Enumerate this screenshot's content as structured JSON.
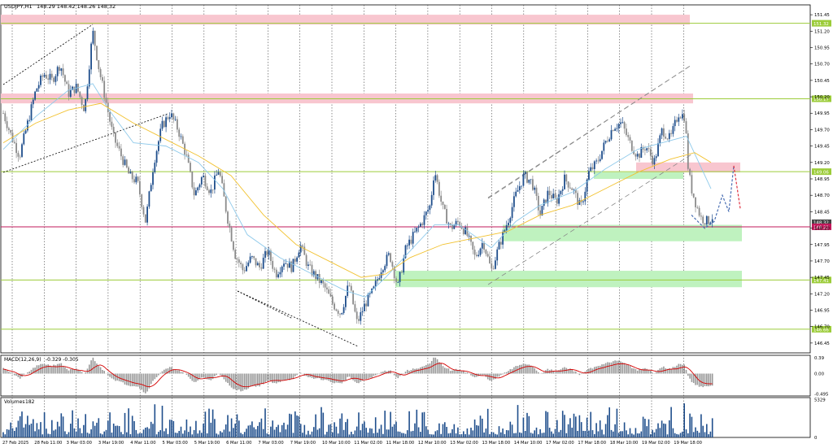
{
  "header": {
    "symbol_label": "USDJPY,H1",
    "ohlc_text": "148.29 148.42 148.26 148.32"
  },
  "colors": {
    "bull": "#1f4e8c",
    "bear": "#8a8a8a",
    "ema_fast": "#8ec9ea",
    "ema_slow": "#f2c230",
    "level_line": "#9ccc3a",
    "supply_zone": "#f8c6cf",
    "demand_zone": "#bff2bf",
    "trendline": "#000000",
    "channel": "#888888",
    "bid_line": "#c2185b",
    "macd_signal": "#d40000",
    "macd_hist": "#9a9a9a",
    "volume": "#1f4e8c",
    "forecast_blue": "#4a6fb3",
    "forecast_red": "#e03040"
  },
  "chart_data": [
    {
      "type": "candlestick",
      "panel": "price",
      "symbol": "USDJPY",
      "timeframe": "H1",
      "ylim": [
        146.3,
        151.6
      ],
      "y_ticks": [
        "151.45",
        "151.20",
        "150.95",
        "150.70",
        "150.45",
        "150.20",
        "149.95",
        "149.70",
        "149.45",
        "149.20",
        "148.95",
        "148.70",
        "148.45",
        "148.20",
        "147.95",
        "147.70",
        "147.45",
        "147.20",
        "146.95",
        "146.70",
        "146.45"
      ],
      "x_ticks": [
        "27 Feb 2025",
        "28 Feb 11:00",
        "3 Mar 03:00",
        "3 Mar 19:00",
        "4 Mar 11:00",
        "5 Mar 03:00",
        "5 Mar 19:00",
        "6 Mar 11:00",
        "7 Mar 03:00",
        "7 Mar 19:00",
        "10 Mar 10:00",
        "11 Mar 02:00",
        "11 Mar 18:00",
        "12 Mar 10:00",
        "13 Mar 02:00",
        "13 Mar 18:00",
        "14 Mar 10:00",
        "17 Mar 02:00",
        "17 Mar 18:00",
        "18 Mar 10:00",
        "19 Mar 02:00",
        "19 Mar 18:00"
      ],
      "close_path": [
        [
          0,
          149.95
        ],
        [
          10,
          149.6
        ],
        [
          20,
          149.3
        ],
        [
          30,
          149.8
        ],
        [
          40,
          150.3
        ],
        [
          50,
          150.55
        ],
        [
          60,
          150.45
        ],
        [
          70,
          150.7
        ],
        [
          80,
          150.25
        ],
        [
          90,
          150.35
        ],
        [
          100,
          150.0
        ],
        [
          110,
          151.2
        ],
        [
          118,
          150.6
        ],
        [
          125,
          150.2
        ],
        [
          135,
          149.6
        ],
        [
          145,
          149.3
        ],
        [
          155,
          149.0
        ],
        [
          165,
          148.9
        ],
        [
          175,
          148.3
        ],
        [
          185,
          149.2
        ],
        [
          195,
          149.75
        ],
        [
          205,
          149.95
        ],
        [
          215,
          149.7
        ],
        [
          225,
          149.3
        ],
        [
          235,
          148.7
        ],
        [
          245,
          149.0
        ],
        [
          255,
          148.75
        ],
        [
          265,
          149.1
        ],
        [
          275,
          148.4
        ],
        [
          285,
          147.8
        ],
        [
          295,
          147.55
        ],
        [
          305,
          147.75
        ],
        [
          315,
          147.6
        ],
        [
          325,
          147.85
        ],
        [
          335,
          147.5
        ],
        [
          345,
          147.7
        ],
        [
          355,
          147.6
        ],
        [
          365,
          147.95
        ],
        [
          375,
          147.6
        ],
        [
          385,
          147.45
        ],
        [
          395,
          147.3
        ],
        [
          405,
          147.05
        ],
        [
          415,
          146.9
        ],
        [
          425,
          147.35
        ],
        [
          435,
          146.75
        ],
        [
          445,
          147.05
        ],
        [
          455,
          147.25
        ],
        [
          465,
          147.6
        ],
        [
          475,
          147.8
        ],
        [
          485,
          147.3
        ],
        [
          495,
          147.9
        ],
        [
          505,
          148.1
        ],
        [
          515,
          148.3
        ],
        [
          525,
          148.55
        ],
        [
          530,
          149.1
        ],
        [
          540,
          148.5
        ],
        [
          550,
          148.2
        ],
        [
          560,
          148.3
        ],
        [
          570,
          148.1
        ],
        [
          580,
          147.75
        ],
        [
          590,
          148.0
        ],
        [
          600,
          147.55
        ],
        [
          610,
          147.95
        ],
        [
          620,
          148.3
        ],
        [
          630,
          148.7
        ],
        [
          640,
          149.0
        ],
        [
          650,
          148.9
        ],
        [
          660,
          148.4
        ],
        [
          670,
          148.75
        ],
        [
          680,
          148.6
        ],
        [
          690,
          148.95
        ],
        [
          700,
          148.8
        ],
        [
          710,
          148.5
        ],
        [
          720,
          149.05
        ],
        [
          730,
          149.2
        ],
        [
          740,
          149.5
        ],
        [
          750,
          149.75
        ],
        [
          760,
          149.8
        ],
        [
          770,
          149.5
        ],
        [
          780,
          149.3
        ],
        [
          790,
          149.45
        ],
        [
          800,
          149.2
        ],
        [
          810,
          149.7
        ],
        [
          820,
          149.55
        ],
        [
          830,
          149.95
        ],
        [
          838,
          149.9
        ],
        [
          842,
          149.1
        ],
        [
          846,
          148.8
        ],
        [
          852,
          148.55
        ],
        [
          858,
          148.35
        ],
        [
          866,
          148.3
        ],
        [
          874,
          148.4
        ]
      ],
      "ema_fast_path": [
        [
          0,
          149.4
        ],
        [
          40,
          149.9
        ],
        [
          80,
          150.3
        ],
        [
          110,
          150.4
        ],
        [
          130,
          150.0
        ],
        [
          160,
          149.5
        ],
        [
          200,
          149.45
        ],
        [
          240,
          149.2
        ],
        [
          270,
          148.8
        ],
        [
          300,
          148.1
        ],
        [
          340,
          147.75
        ],
        [
          380,
          147.5
        ],
        [
          420,
          147.25
        ],
        [
          445,
          147.15
        ],
        [
          470,
          147.45
        ],
        [
          500,
          147.85
        ],
        [
          530,
          148.25
        ],
        [
          560,
          148.25
        ],
        [
          600,
          147.9
        ],
        [
          630,
          148.3
        ],
        [
          660,
          148.55
        ],
        [
          700,
          148.75
        ],
        [
          740,
          149.1
        ],
        [
          780,
          149.4
        ],
        [
          810,
          149.5
        ],
        [
          840,
          149.6
        ],
        [
          855,
          149.2
        ],
        [
          870,
          148.8
        ]
      ],
      "ema_slow_path": [
        [
          0,
          149.5
        ],
        [
          40,
          149.8
        ],
        [
          80,
          150.0
        ],
        [
          120,
          150.1
        ],
        [
          160,
          149.8
        ],
        [
          200,
          149.55
        ],
        [
          240,
          149.3
        ],
        [
          280,
          149.0
        ],
        [
          320,
          148.4
        ],
        [
          360,
          147.95
        ],
        [
          400,
          147.7
        ],
        [
          440,
          147.45
        ],
        [
          470,
          147.5
        ],
        [
          500,
          147.75
        ],
        [
          540,
          147.95
        ],
        [
          580,
          148.05
        ],
        [
          620,
          148.15
        ],
        [
          660,
          148.4
        ],
        [
          700,
          148.55
        ],
        [
          740,
          148.8
        ],
        [
          780,
          149.05
        ],
        [
          820,
          149.25
        ],
        [
          850,
          149.35
        ],
        [
          870,
          149.2
        ]
      ],
      "supply_zones": [
        [
          151.3,
          151.45
        ],
        [
          150.1,
          150.25
        ],
        [
          149.05,
          149.2
        ]
      ],
      "demand_zones": [
        [
          148.0,
          148.25
        ],
        [
          147.3,
          147.55
        ],
        [
          148.95,
          149.05
        ]
      ],
      "horizontal_levels": [
        {
          "price": 151.32,
          "label": "151.32"
        },
        {
          "price": 150.17,
          "label": "150.17"
        },
        {
          "price": 149.06,
          "label": "149.06"
        },
        {
          "price": 147.41,
          "label": "147.41"
        },
        {
          "price": 146.66,
          "label": "146.66"
        }
      ],
      "bid_line": {
        "price": 148.22,
        "label": "148.22"
      },
      "ask_label": "148.32",
      "forecast_path": [
        [
          846,
          148.4
        ],
        [
          862,
          148.2
        ],
        [
          874,
          148.3
        ],
        [
          884,
          148.7
        ],
        [
          892,
          148.45
        ],
        [
          898,
          149.15
        ],
        [
          906,
          148.5
        ]
      ]
    },
    {
      "type": "macd",
      "panel": "macd",
      "title": "MACD(12,26,9)",
      "values_text": "-0.329  -0.305",
      "y_ticks": [
        "0.39",
        "0.00",
        "-0.495"
      ],
      "ylim": [
        -0.55,
        0.45
      ]
    },
    {
      "type": "bar",
      "panel": "volume",
      "title": "Volumes",
      "value_text": "182",
      "y_ticks": [
        "5329",
        "0"
      ],
      "ylim": [
        0,
        5600
      ]
    }
  ]
}
